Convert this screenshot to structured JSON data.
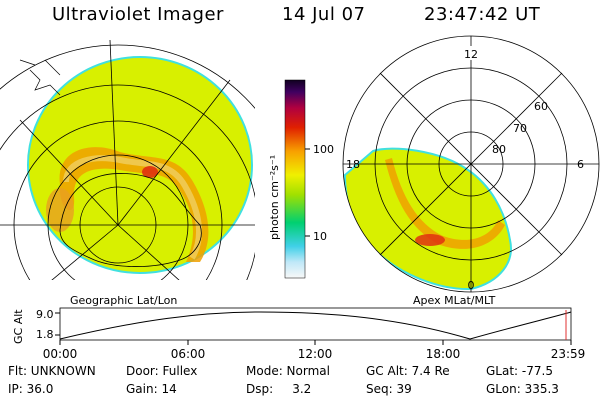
{
  "header": {
    "title": "Ultraviolet Imager",
    "date": "14 Jul 07",
    "time": "23:47:42 UT"
  },
  "left_panel": {
    "caption": "Geographic Lat/Lon"
  },
  "right_panel": {
    "caption": "Apex MLat/MLT",
    "mlt_labels": [
      "12",
      "18",
      "6",
      "0"
    ],
    "lat_labels": [
      "60",
      "70",
      "80"
    ]
  },
  "colorbar": {
    "unit_label": "photon cm⁻²s⁻¹",
    "tick_labels": [
      "100",
      "10"
    ]
  },
  "altitude_plot": {
    "ylabel": "GC Alt",
    "ytick_labels": [
      "9.0",
      "1.8"
    ],
    "xtick_labels": [
      "00:00",
      "06:00",
      "12:00",
      "18:00",
      "23:59"
    ]
  },
  "info": {
    "row1": [
      "Flt: UNKNOWN",
      "Door: Fullex",
      "Mode: Normal",
      "GC Alt: 7.4 Re",
      "GLat: -77.5"
    ],
    "row2": [
      "IP: 36.0",
      "Gain: 14",
      "Dsp:     3.2",
      "Seq: 39",
      "GLon: 335.3"
    ]
  },
  "colors": {
    "background": "#ffffff",
    "disk": "#d8f000",
    "oval_outer": "#f0a000",
    "oval_inner": "#e03010",
    "limb": "#40e0e0",
    "grid": "#000000"
  }
}
